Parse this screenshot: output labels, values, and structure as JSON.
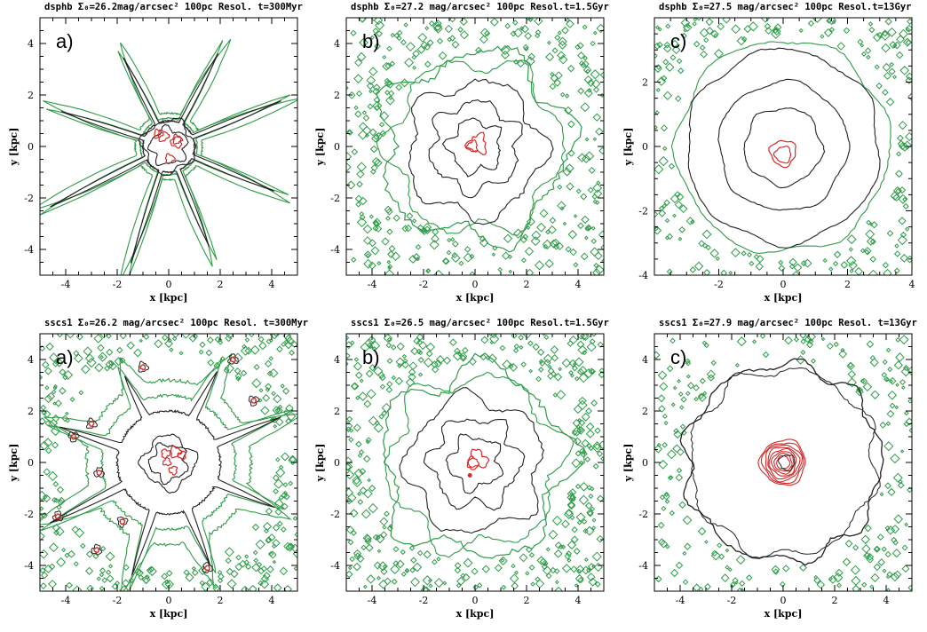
{
  "chart_data": [
    {
      "type": "contour",
      "title": "dsphb Σ₀=26.2mag/arcsec² 100pc Resol. t=300Myr",
      "panel_label": "a)",
      "xlabel": "x [kpc]",
      "ylabel": "y [kpc]",
      "xlim": [
        -5,
        5
      ],
      "ylim": [
        -5,
        5
      ],
      "xticks": [
        -4,
        -2,
        0,
        2,
        4
      ],
      "yticks": [
        -4,
        -2,
        0,
        2,
        4
      ],
      "morphology": "star",
      "contour_colors": {
        "outer": "#2e9c48",
        "mid": "#222222",
        "inner": "#d42a2a"
      }
    },
    {
      "type": "contour",
      "title": "dsphb Σ₀=27.2 mag/arcsec² 100pc Resol.t=1.5Gyr",
      "panel_label": "b)",
      "xlabel": "x [kpc]",
      "ylabel": "y [kpc]",
      "xlim": [
        -5,
        5
      ],
      "ylim": [
        -5,
        5
      ],
      "xticks": [
        -4,
        -2,
        0,
        2,
        4
      ],
      "yticks": [
        -4,
        -2,
        0,
        2,
        4
      ],
      "morphology": "blob",
      "contour_colors": {
        "outer": "#2e9c48",
        "mid": "#222222",
        "inner": "#d42a2a"
      }
    },
    {
      "type": "contour",
      "title": "dsphb Σ₀=27.5 mag/arcsec² 100pc Resol.t=13Gyr",
      "panel_label": "c)",
      "xlabel": "x [kpc]",
      "ylabel": "y [kpc]",
      "xlim": [
        -4,
        4
      ],
      "ylim": [
        -4,
        4
      ],
      "xticks": [
        -2,
        0,
        2,
        4
      ],
      "yticks": [
        -4,
        -2,
        0,
        2
      ],
      "morphology": "concentric",
      "contour_colors": {
        "outer": "#2e9c48",
        "mid": "#222222",
        "inner": "#d42a2a"
      }
    },
    {
      "type": "contour",
      "title": "sscs1 Σ₀=26.2 mag/arcsec² 100pc Resol. t=300Myr",
      "panel_label": "a)",
      "xlabel": "x [kpc]",
      "ylabel": "y [kpc]",
      "xlim": [
        -5,
        5
      ],
      "ylim": [
        -5,
        5
      ],
      "xticks": [
        -4,
        -2,
        0,
        2,
        4
      ],
      "yticks": [
        -4,
        -2,
        0,
        2,
        4
      ],
      "morphology": "star-filled",
      "contour_colors": {
        "outer": "#2e9c48",
        "mid": "#222222",
        "inner": "#d42a2a"
      }
    },
    {
      "type": "contour",
      "title": "sscs1 Σ₀=26.5 mag/arcsec² 100pc Resol.t=1.5Gyr",
      "panel_label": "b)",
      "xlabel": "x [kpc]",
      "ylabel": "y [kpc]",
      "xlim": [
        -5,
        5
      ],
      "ylim": [
        -5,
        5
      ],
      "xticks": [
        -4,
        -2,
        0,
        2,
        4
      ],
      "yticks": [
        -4,
        -2,
        0,
        2,
        4
      ],
      "morphology": "blob-filled",
      "contour_colors": {
        "outer": "#2e9c48",
        "mid": "#222222",
        "inner": "#d42a2a"
      }
    },
    {
      "type": "contour",
      "title": "sscs1 Σ₀=27.9 mag/arcsec² 100pc Resol. t=13Gyr",
      "panel_label": "c)",
      "xlabel": "x [kpc]",
      "ylabel": "y [kpc]",
      "xlim": [
        -5,
        5
      ],
      "ylim": [
        -5,
        5
      ],
      "xticks": [
        -4,
        -2,
        0,
        2,
        4
      ],
      "yticks": [
        -4,
        -2,
        0,
        2,
        4
      ],
      "morphology": "ring",
      "contour_colors": {
        "outer": "#2e9c48",
        "mid": "#222222",
        "inner": "#d42a2a"
      }
    }
  ]
}
